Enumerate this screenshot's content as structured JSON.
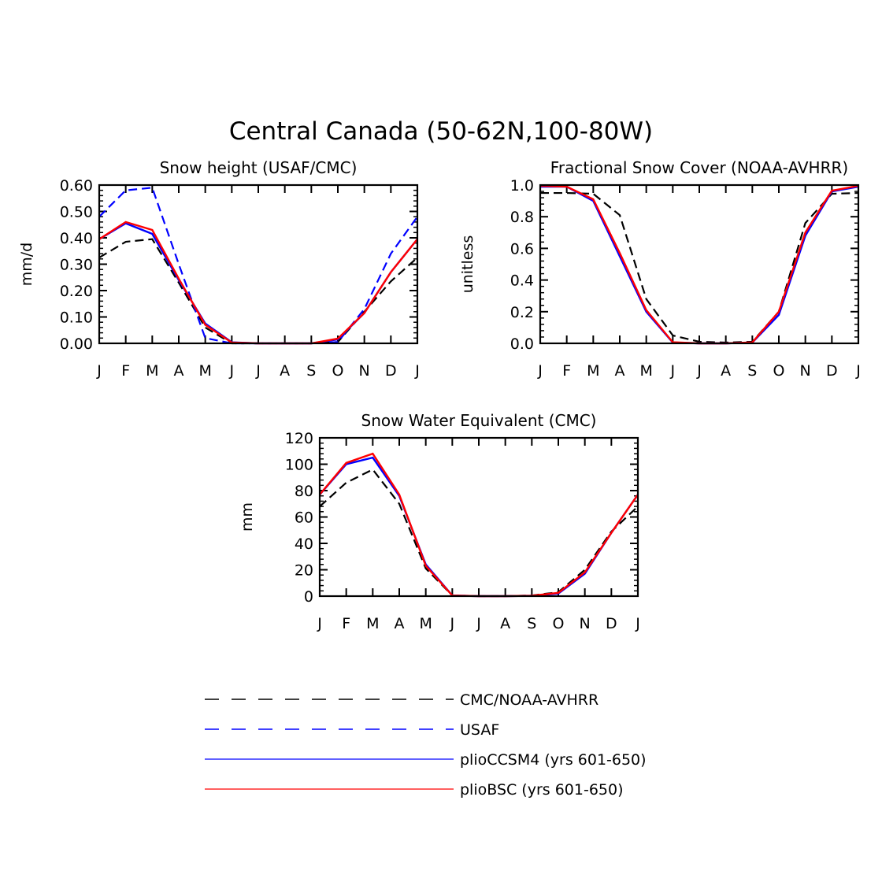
{
  "figure_title": "Central Canada (50-62N,100-80W)",
  "chart_data": [
    {
      "type": "line",
      "title": "Snow height (USAF/CMC)",
      "xlabel": "",
      "ylabel": "mm/d",
      "x": [
        "J",
        "F",
        "M",
        "A",
        "M",
        "J",
        "J",
        "A",
        "S",
        "O",
        "N",
        "D",
        "J"
      ],
      "ylim": [
        0,
        0.6
      ],
      "yticks": [
        "0.00",
        "0.10",
        "0.20",
        "0.30",
        "0.40",
        "0.50",
        "0.60"
      ],
      "series": [
        {
          "name": "CMC/NOAA-AVHRR",
          "color": "#000000",
          "dash": true,
          "values": [
            0.325,
            0.385,
            0.395,
            0.23,
            0.06,
            0.0,
            0.0,
            0.0,
            0.0,
            0.005,
            0.12,
            0.235,
            0.325
          ]
        },
        {
          "name": "USAF",
          "color": "#0000ff",
          "dash": true,
          "values": [
            0.48,
            0.58,
            0.59,
            0.3,
            0.02,
            0.0,
            0.0,
            0.0,
            0.0,
            0.005,
            0.13,
            0.34,
            0.48
          ]
        },
        {
          "name": "plioCCSM4 (yrs 601-650)",
          "color": "#0000ff",
          "dash": false,
          "values": [
            0.395,
            0.455,
            0.415,
            0.24,
            0.075,
            0.004,
            0.0,
            0.0,
            0.0,
            0.015,
            0.115,
            0.27,
            0.395
          ]
        },
        {
          "name": "plioBSC (yrs 601-650)",
          "color": "#ff0000",
          "dash": false,
          "values": [
            0.395,
            0.46,
            0.43,
            0.245,
            0.07,
            0.003,
            0.0,
            0.0,
            0.0,
            0.018,
            0.115,
            0.27,
            0.395
          ]
        }
      ]
    },
    {
      "type": "line",
      "title": "Fractional Snow Cover (NOAA-AVHRR)",
      "xlabel": "",
      "ylabel": "unitless",
      "x": [
        "J",
        "F",
        "M",
        "A",
        "M",
        "J",
        "J",
        "A",
        "S",
        "O",
        "N",
        "D",
        "J"
      ],
      "ylim": [
        0,
        1.0
      ],
      "yticks": [
        "0.0",
        "0.2",
        "0.4",
        "0.6",
        "0.8",
        "1.0"
      ],
      "series": [
        {
          "name": "CMC/NOAA-AVHRR",
          "color": "#000000",
          "dash": true,
          "values": [
            0.95,
            0.95,
            0.945,
            0.81,
            0.28,
            0.05,
            0.01,
            0.005,
            0.01,
            0.2,
            0.76,
            0.945,
            0.95
          ]
        },
        {
          "name": "plioCCSM4 (yrs 601-650)",
          "color": "#0000ff",
          "dash": false,
          "values": [
            0.99,
            0.99,
            0.9,
            0.55,
            0.2,
            0.005,
            0.0,
            0.0,
            0.005,
            0.18,
            0.68,
            0.96,
            0.99
          ]
        },
        {
          "name": "plioBSC (yrs 601-650)",
          "color": "#ff0000",
          "dash": false,
          "values": [
            0.995,
            0.99,
            0.91,
            0.57,
            0.21,
            0.007,
            0.0,
            0.0,
            0.006,
            0.2,
            0.7,
            0.965,
            0.995
          ]
        }
      ]
    },
    {
      "type": "line",
      "title": "Snow Water Equivalent (CMC)",
      "xlabel": "",
      "ylabel": "mm",
      "x": [
        "J",
        "F",
        "M",
        "A",
        "M",
        "J",
        "J",
        "A",
        "S",
        "O",
        "N",
        "D",
        "J"
      ],
      "ylim": [
        0,
        120
      ],
      "yticks": [
        "0",
        "20",
        "40",
        "60",
        "80",
        "100",
        "120"
      ],
      "series": [
        {
          "name": "CMC/NOAA-AVHRR",
          "color": "#000000",
          "dash": true,
          "values": [
            68,
            86,
            96,
            70,
            21,
            0.5,
            0,
            0,
            0.5,
            3,
            20,
            49,
            68
          ]
        },
        {
          "name": "plioCCSM4 (yrs 601-650)",
          "color": "#0000ff",
          "dash": false,
          "values": [
            77,
            100,
            105,
            76,
            24,
            0.5,
            0,
            0,
            0.3,
            2,
            17,
            48,
            77
          ]
        },
        {
          "name": "plioBSC (yrs 601-650)",
          "color": "#ff0000",
          "dash": false,
          "values": [
            77,
            101,
            108,
            77,
            23,
            0.5,
            0,
            0,
            0.3,
            2.5,
            18,
            48,
            77
          ]
        }
      ]
    }
  ],
  "legend": [
    {
      "label": "CMC/NOAA-AVHRR",
      "color": "#000000",
      "dash": true
    },
    {
      "label": "USAF",
      "color": "#0000ff",
      "dash": true
    },
    {
      "label": "plioCCSM4 (yrs 601-650)",
      "color": "#0000ff",
      "dash": false
    },
    {
      "label": "plioBSC (yrs 601-650)",
      "color": "#ff0000",
      "dash": false
    }
  ]
}
